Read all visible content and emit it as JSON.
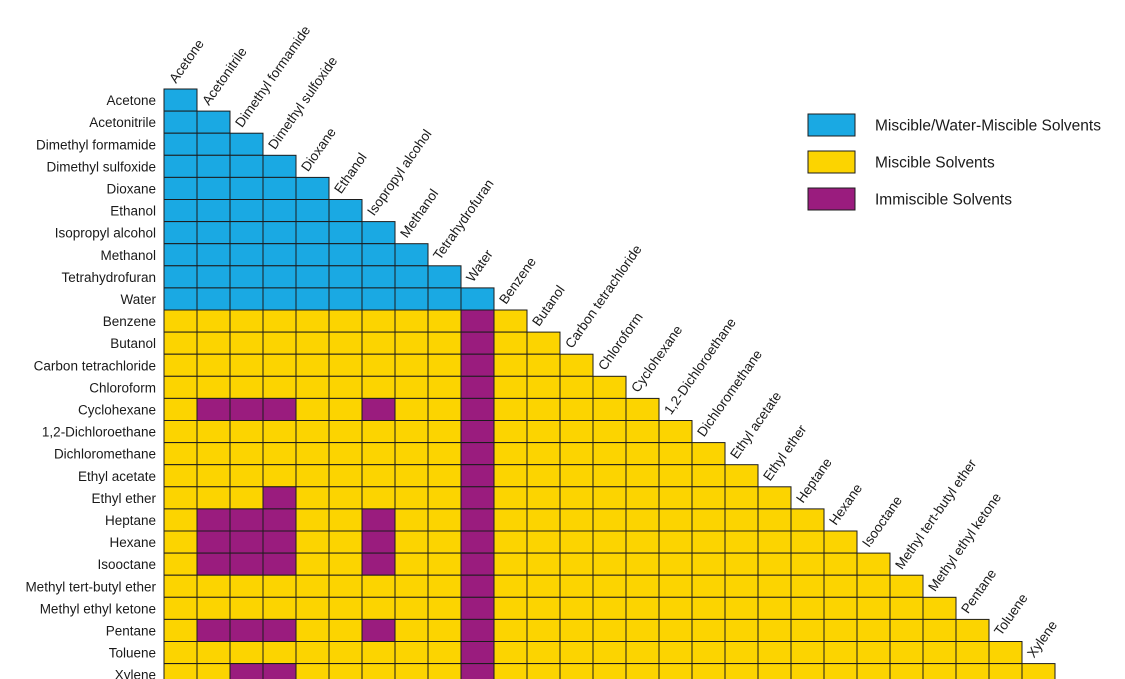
{
  "chart_data": {
    "type": "heatmap",
    "solvents": [
      "Acetone",
      "Acetonitrile",
      "Dimethyl formamide",
      "Dimethyl sulfoxide",
      "Dioxane",
      "Ethanol",
      "Isopropyl alcohol",
      "Methanol",
      "Tetrahydrofuran",
      "Water",
      "Benzene",
      "Butanol",
      "Carbon tetrachloride",
      "Chloroform",
      "Cyclohexane",
      "1,2-Dichloroethane",
      "Dichloromethane",
      "Ethyl acetate",
      "Ethyl ether",
      "Heptane",
      "Hexane",
      "Isooctane",
      "Methyl tert-butyl ether",
      "Methyl ethyl ketone",
      "Pentane",
      "Toluene",
      "Xylene"
    ],
    "categories": {
      "W": "Miscible/Water-Miscible Solvents",
      "M": "Miscible Solvents",
      "I": "Immiscible Solvents"
    },
    "colors": {
      "W": "#1aa9e3",
      "M": "#fcd400",
      "I": "#9a1c7e"
    },
    "legend_position": "top-right",
    "matrix": [
      [
        "W"
      ],
      [
        "W",
        "W"
      ],
      [
        "W",
        "W",
        "W"
      ],
      [
        "W",
        "W",
        "W",
        "W"
      ],
      [
        "W",
        "W",
        "W",
        "W",
        "W"
      ],
      [
        "W",
        "W",
        "W",
        "W",
        "W",
        "W"
      ],
      [
        "W",
        "W",
        "W",
        "W",
        "W",
        "W",
        "W"
      ],
      [
        "W",
        "W",
        "W",
        "W",
        "W",
        "W",
        "W",
        "W"
      ],
      [
        "W",
        "W",
        "W",
        "W",
        "W",
        "W",
        "W",
        "W",
        "W"
      ],
      [
        "W",
        "W",
        "W",
        "W",
        "W",
        "W",
        "W",
        "W",
        "W",
        "W"
      ],
      [
        "M",
        "M",
        "M",
        "M",
        "M",
        "M",
        "M",
        "M",
        "M",
        "I",
        "M"
      ],
      [
        "M",
        "M",
        "M",
        "M",
        "M",
        "M",
        "M",
        "M",
        "M",
        "I",
        "M",
        "M"
      ],
      [
        "M",
        "M",
        "M",
        "M",
        "M",
        "M",
        "M",
        "M",
        "M",
        "I",
        "M",
        "M",
        "M"
      ],
      [
        "M",
        "M",
        "M",
        "M",
        "M",
        "M",
        "M",
        "M",
        "M",
        "I",
        "M",
        "M",
        "M",
        "M"
      ],
      [
        "M",
        "I",
        "I",
        "I",
        "M",
        "M",
        "I",
        "M",
        "M",
        "I",
        "M",
        "M",
        "M",
        "M",
        "M"
      ],
      [
        "M",
        "M",
        "M",
        "M",
        "M",
        "M",
        "M",
        "M",
        "M",
        "I",
        "M",
        "M",
        "M",
        "M",
        "M",
        "M"
      ],
      [
        "M",
        "M",
        "M",
        "M",
        "M",
        "M",
        "M",
        "M",
        "M",
        "I",
        "M",
        "M",
        "M",
        "M",
        "M",
        "M",
        "M"
      ],
      [
        "M",
        "M",
        "M",
        "M",
        "M",
        "M",
        "M",
        "M",
        "M",
        "I",
        "M",
        "M",
        "M",
        "M",
        "M",
        "M",
        "M",
        "M"
      ],
      [
        "M",
        "M",
        "M",
        "I",
        "M",
        "M",
        "M",
        "M",
        "M",
        "I",
        "M",
        "M",
        "M",
        "M",
        "M",
        "M",
        "M",
        "M",
        "M"
      ],
      [
        "M",
        "I",
        "I",
        "I",
        "M",
        "M",
        "I",
        "M",
        "M",
        "I",
        "M",
        "M",
        "M",
        "M",
        "M",
        "M",
        "M",
        "M",
        "M",
        "M"
      ],
      [
        "M",
        "I",
        "I",
        "I",
        "M",
        "M",
        "I",
        "M",
        "M",
        "I",
        "M",
        "M",
        "M",
        "M",
        "M",
        "M",
        "M",
        "M",
        "M",
        "M",
        "M"
      ],
      [
        "M",
        "I",
        "I",
        "I",
        "M",
        "M",
        "I",
        "M",
        "M",
        "I",
        "M",
        "M",
        "M",
        "M",
        "M",
        "M",
        "M",
        "M",
        "M",
        "M",
        "M",
        "M"
      ],
      [
        "M",
        "M",
        "M",
        "M",
        "M",
        "M",
        "M",
        "M",
        "M",
        "I",
        "M",
        "M",
        "M",
        "M",
        "M",
        "M",
        "M",
        "M",
        "M",
        "M",
        "M",
        "M",
        "M"
      ],
      [
        "M",
        "M",
        "M",
        "M",
        "M",
        "M",
        "M",
        "M",
        "M",
        "I",
        "M",
        "M",
        "M",
        "M",
        "M",
        "M",
        "M",
        "M",
        "M",
        "M",
        "M",
        "M",
        "M",
        "M"
      ],
      [
        "M",
        "I",
        "I",
        "I",
        "M",
        "M",
        "I",
        "M",
        "M",
        "I",
        "M",
        "M",
        "M",
        "M",
        "M",
        "M",
        "M",
        "M",
        "M",
        "M",
        "M",
        "M",
        "M",
        "M",
        "M"
      ],
      [
        "M",
        "M",
        "M",
        "M",
        "M",
        "M",
        "M",
        "M",
        "M",
        "I",
        "M",
        "M",
        "M",
        "M",
        "M",
        "M",
        "M",
        "M",
        "M",
        "M",
        "M",
        "M",
        "M",
        "M",
        "M",
        "M"
      ],
      [
        "M",
        "M",
        "I",
        "I",
        "M",
        "M",
        "M",
        "M",
        "M",
        "I",
        "M",
        "M",
        "M",
        "M",
        "M",
        "M",
        "M",
        "M",
        "M",
        "M",
        "M",
        "M",
        "M",
        "M",
        "M",
        "M",
        "M"
      ]
    ]
  }
}
